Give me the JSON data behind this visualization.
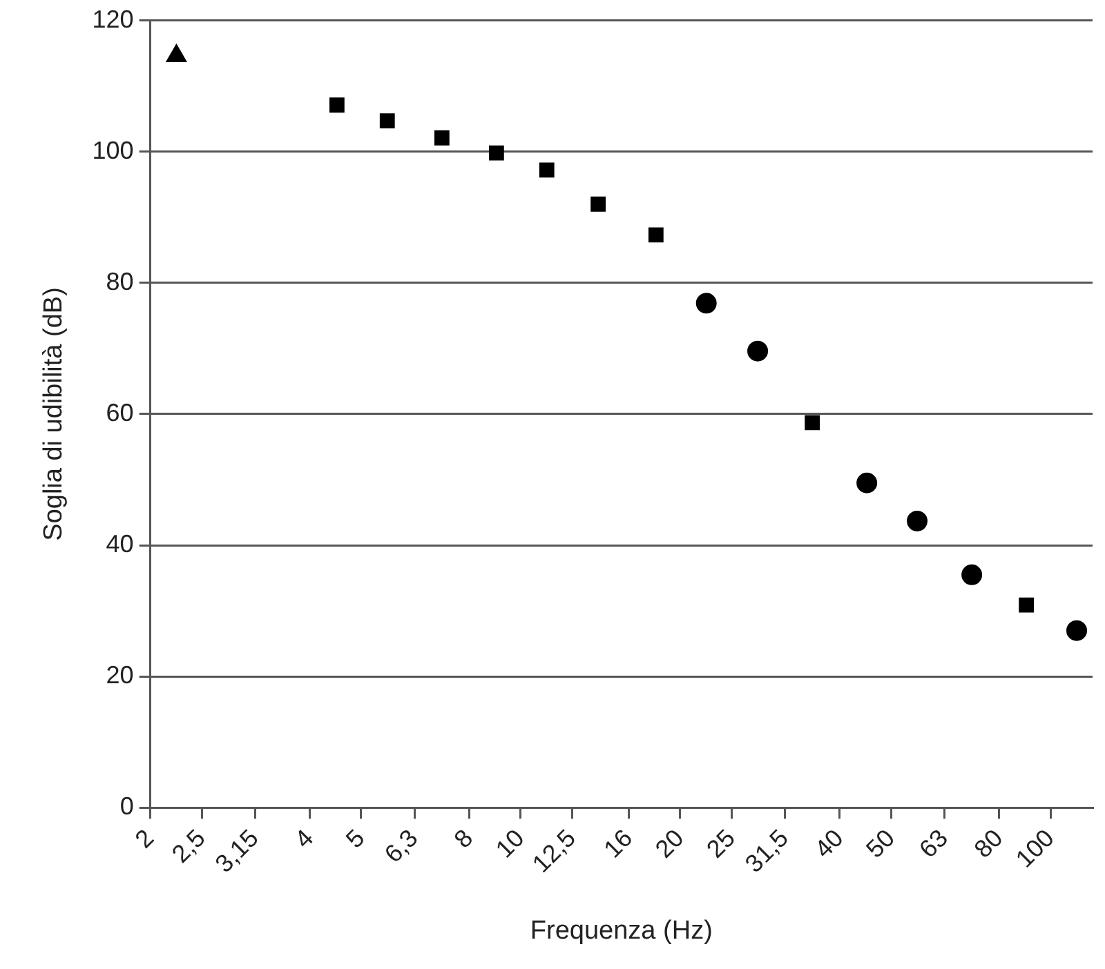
{
  "chart_data": {
    "type": "scatter",
    "xlabel": "Frequenza (Hz)",
    "ylabel": "Soglia di udibilità (dB)",
    "log": "x",
    "grid": "y",
    "legend": false,
    "xlim": [
      2,
      120
    ],
    "ylim": [
      0,
      120
    ],
    "xticks": [
      2,
      {
        "value": 2.5,
        "label": "2,5"
      },
      {
        "value": 3.15,
        "label": "3,15"
      },
      4,
      5,
      {
        "value": 6.3,
        "label": "6,3"
      },
      8,
      10,
      {
        "value": 12.5,
        "label": "12,5"
      },
      16,
      20,
      25,
      {
        "value": 31.5,
        "label": "31,5"
      },
      40,
      50,
      63,
      80,
      100
    ],
    "yticks": [
      0,
      20,
      40,
      60,
      80,
      100,
      120
    ],
    "series": [
      {
        "color": "#000000",
        "marker": "triangle",
        "x": [
          2.24
        ],
        "values": [
          114.6
        ]
      },
      {
        "color": "#000000",
        "marker": "square",
        "x": [
          4.5,
          5.6,
          7.1,
          9,
          11.2,
          14,
          18,
          35.5,
          90
        ],
        "values": [
          107.1,
          104.7,
          102.1,
          99.8,
          97.2,
          92.0,
          87.3,
          58.7,
          30.9
        ]
      },
      {
        "color": "#000000",
        "marker": "circle",
        "x": [
          22.4,
          28,
          45,
          56,
          71,
          112
        ],
        "values": [
          76.9,
          69.6,
          49.5,
          43.7,
          35.5,
          27.0
        ]
      }
    ]
  }
}
